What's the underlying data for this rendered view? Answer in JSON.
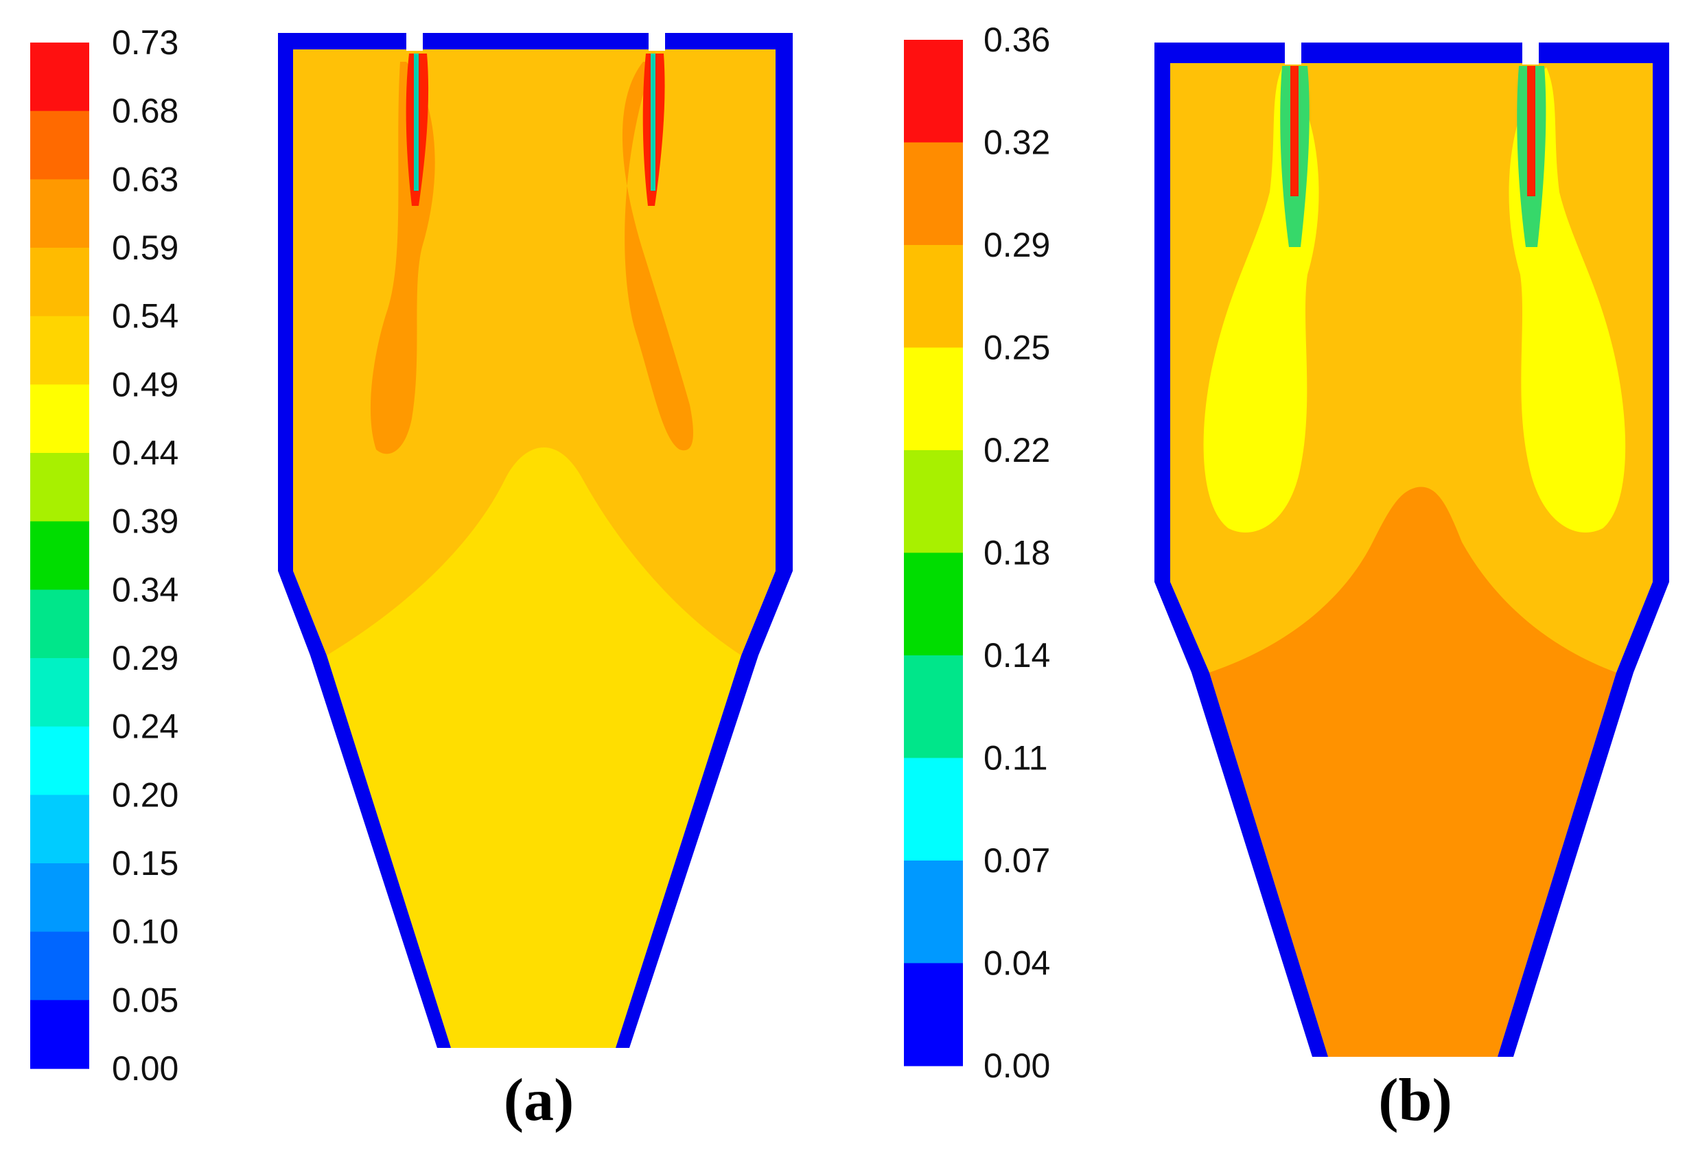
{
  "figure": {
    "panels": [
      {
        "label": "(a)",
        "colorbar": {
          "ticks": [
            "0.73",
            "0.68",
            "0.63",
            "0.59",
            "0.54",
            "0.49",
            "0.44",
            "0.39",
            "0.34",
            "0.29",
            "0.24",
            "0.20",
            "0.15",
            "0.10",
            "0.05",
            "0.00"
          ],
          "colors_top_to_bottom": [
            "#ff1010",
            "#ff6a00",
            "#ff9900",
            "#ffbb00",
            "#ffd500",
            "#ffff00",
            "#a8f000",
            "#00dd00",
            "#00e68a",
            "#00f2c4",
            "#00ffff",
            "#00ccff",
            "#0099ff",
            "#0066ff",
            "#0000ff"
          ]
        },
        "field": {
          "background": "#ffc107",
          "lower_region": "#ffde00",
          "plume": "#ff9900",
          "jet_core": "#ff2200",
          "wall": "#0000ee"
        }
      },
      {
        "label": "(b)",
        "colorbar": {
          "ticks": [
            "0.36",
            "0.32",
            "0.29",
            "0.25",
            "0.22",
            "0.18",
            "0.14",
            "0.11",
            "0.07",
            "0.04",
            "0.00"
          ],
          "colors_top_to_bottom": [
            "#ff1010",
            "#ff8c00",
            "#ffbf00",
            "#ffff00",
            "#a8f000",
            "#00dd00",
            "#00e68a",
            "#00ffff",
            "#0099ff",
            "#0000ff"
          ]
        },
        "field": {
          "background": "#ffc107",
          "lower_region": "#ff9200",
          "plume": "#ffff00",
          "jet_core": "#ff2200",
          "wall": "#0000ee"
        }
      }
    ]
  }
}
